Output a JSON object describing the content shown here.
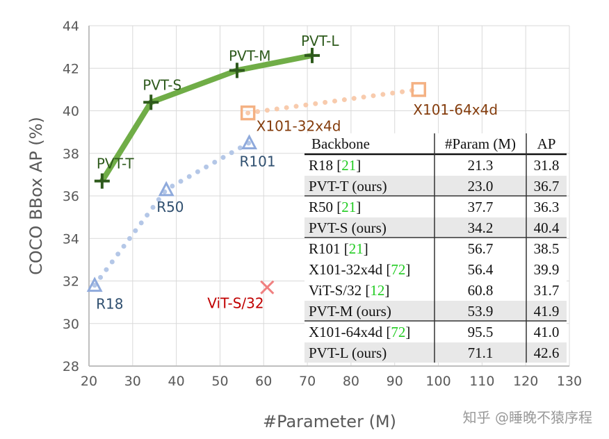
{
  "chart_data": {
    "type": "scatter",
    "xlabel": "#Parameter (M)",
    "ylabel": "COCO BBox AP (%)",
    "xlim": [
      20,
      130
    ],
    "ylim": [
      28,
      44
    ],
    "xticks": [
      20,
      30,
      40,
      50,
      60,
      70,
      80,
      90,
      100,
      110,
      120,
      130
    ],
    "yticks": [
      28,
      30,
      32,
      34,
      36,
      38,
      40,
      42,
      44
    ],
    "grid": true,
    "series": [
      {
        "kind": "pvt",
        "color": "#70ad47",
        "marker": "plus",
        "line": "solid",
        "markerColor": "#2e5a1c",
        "labelColor": "#2e5a1c",
        "points": [
          {
            "label": "PVT-T",
            "x": 23.0,
            "y": 36.7
          },
          {
            "label": "PVT-S",
            "x": 34.2,
            "y": 40.4
          },
          {
            "label": "PVT-M",
            "x": 53.9,
            "y": 41.9
          },
          {
            "label": "PVT-L",
            "x": 71.1,
            "y": 42.6
          }
        ]
      },
      {
        "kind": "resnet",
        "color": "#b4c7e7",
        "marker": "triangle",
        "line": "dotted",
        "markerColor": "#8faadc",
        "labelColor": "#2f4f6f",
        "points": [
          {
            "label": "R18",
            "x": 21.3,
            "y": 31.8
          },
          {
            "label": "R50",
            "x": 37.7,
            "y": 36.3
          },
          {
            "label": "R101",
            "x": 56.7,
            "y": 38.5
          }
        ]
      },
      {
        "kind": "resnext",
        "color": "#f8cbad",
        "marker": "square",
        "line": "dotted",
        "markerColor": "#f4b183",
        "labelColor": "#843c0c",
        "points": [
          {
            "label": "X101-32x4d",
            "x": 56.4,
            "y": 39.9
          },
          {
            "label": "X101-64x4d",
            "x": 95.5,
            "y": 41.0
          }
        ]
      },
      {
        "kind": "vit",
        "color": "#f08080",
        "marker": "cross",
        "line": "none",
        "markerColor": "#f08080",
        "labelColor": "#c00000",
        "points": [
          {
            "label": "ViT-S/32",
            "x": 60.8,
            "y": 31.7
          }
        ]
      }
    ],
    "table": {
      "headers": [
        "Backbone",
        "#Param (M)",
        "AP"
      ],
      "rows": [
        {
          "name": "R18 ",
          "ref": "21",
          "param": "21.3",
          "ap": "31.8",
          "ours": false
        },
        {
          "name": "PVT-T (ours)",
          "ref": "",
          "param": "23.0",
          "ap": "36.7",
          "ours": true
        },
        {
          "name": "R50 ",
          "ref": "21",
          "param": "37.7",
          "ap": "36.3",
          "ours": false
        },
        {
          "name": "PVT-S (ours)",
          "ref": "",
          "param": "34.2",
          "ap": "40.4",
          "ours": true
        },
        {
          "name": "R101 ",
          "ref": "21",
          "param": "56.7",
          "ap": "38.5",
          "ours": false
        },
        {
          "name": "X101-32x4d ",
          "ref": "72",
          "param": "56.4",
          "ap": "39.9",
          "ours": false
        },
        {
          "name": "ViT-S/32 ",
          "ref": "12",
          "param": "60.8",
          "ap": "31.7",
          "ours": false
        },
        {
          "name": "PVT-M (ours)",
          "ref": "",
          "param": "53.9",
          "ap": "41.9",
          "ours": true
        },
        {
          "name": "X101-64x4d ",
          "ref": "72",
          "param": "95.5",
          "ap": "41.0",
          "ours": false
        },
        {
          "name": "PVT-L (ours)",
          "ref": "",
          "param": "71.1",
          "ap": "42.6",
          "ours": true
        }
      ],
      "group_breaks_after": [
        1,
        3,
        7
      ],
      "ref_color": "#22cc22"
    }
  },
  "watermark": "知乎 @睡晚不猿序程"
}
